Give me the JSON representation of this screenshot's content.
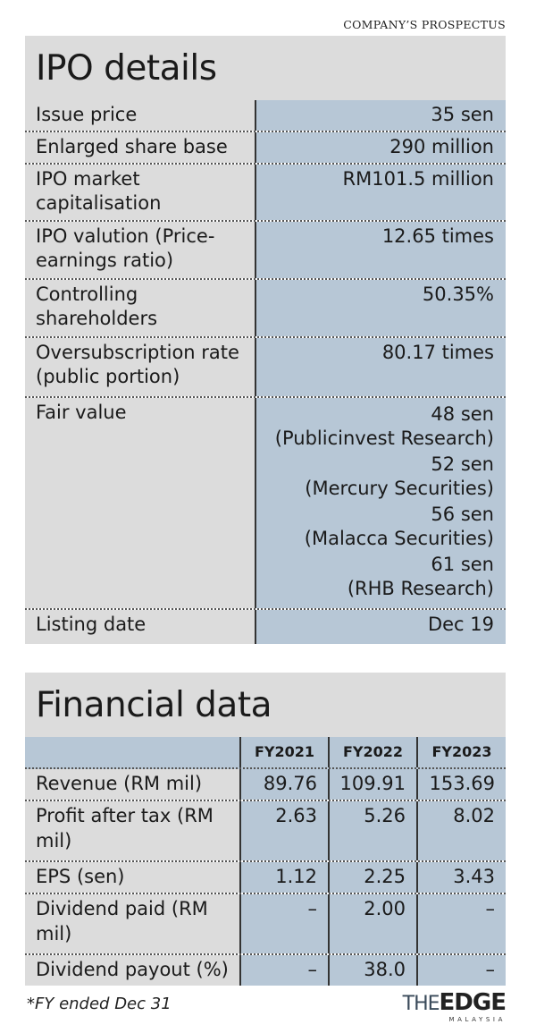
{
  "source": "COMPANY’S PROSPECTUS",
  "ipo": {
    "title": "IPO details",
    "rows": [
      {
        "label": "Issue price",
        "value": "35 sen"
      },
      {
        "label": "Enlarged share base",
        "value": "290 million"
      },
      {
        "label": "IPO market capitalisation",
        "value": "RM101.5 million"
      },
      {
        "label": "IPO valution (Price-earnings ratio)",
        "value": "12.65 times"
      },
      {
        "label": "Controlling shareholders",
        "value": "50.35%"
      },
      {
        "label": "Oversubscription rate (public portion)",
        "value": "80.17 times"
      }
    ],
    "fair_value": {
      "label": "Fair value",
      "entries": [
        {
          "value": "48 sen",
          "source": "(Publicinvest Research)"
        },
        {
          "value": "52 sen",
          "source": "(Mercury Securities)"
        },
        {
          "value": "56 sen",
          "source": "(Malacca Securities)"
        },
        {
          "value": "61 sen",
          "source": "(RHB Research)"
        }
      ]
    },
    "listing": {
      "label": "Listing date",
      "value": "Dec 19"
    }
  },
  "financial": {
    "title": "Financial data",
    "years": [
      "FY2021",
      "FY2022",
      "FY2023"
    ],
    "rows": [
      {
        "label": "Revenue (RM mil)",
        "values": [
          "89.76",
          "109.91",
          "153.69"
        ]
      },
      {
        "label": "Profit after tax (RM mil)",
        "values": [
          "2.63",
          "5.26",
          "8.02"
        ]
      },
      {
        "label": "EPS (sen)",
        "values": [
          "1.12",
          "2.25",
          "3.43"
        ]
      },
      {
        "label": "Dividend paid (RM mil)",
        "values": [
          "–",
          "2.00",
          "–"
        ]
      },
      {
        "label": "Dividend payout (%)",
        "values": [
          "–",
          "38.0",
          "–"
        ]
      }
    ]
  },
  "footnote": "*FY ended Dec 31",
  "logo": {
    "the": "THE",
    "edge": "EDGE",
    "sub": "MALAYSIA"
  }
}
